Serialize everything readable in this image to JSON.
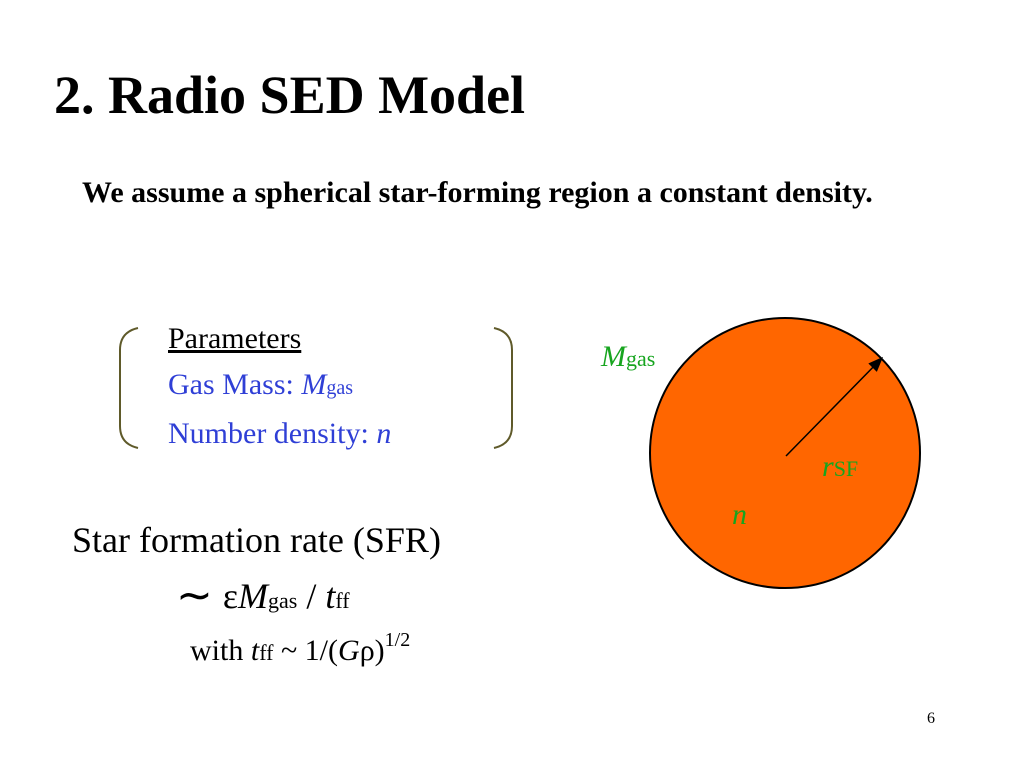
{
  "slide": {
    "title": "2. Radio SED Model",
    "intro": "We assume a spherical star-forming region a constant density.",
    "parameters": {
      "heading": "Parameters",
      "gas_mass_label": "Gas Mass: ",
      "gas_mass_symbol": "M",
      "gas_mass_sub": "gas",
      "number_density_label": "Number density: ",
      "number_density_symbol": "n"
    },
    "sfr": {
      "label": "Star formation rate (SFR)",
      "tilde": "∼",
      "epsilon": "ε",
      "M": "M",
      "M_sub": "gas",
      "slash": " / ",
      "t": "t",
      "t_sub": "ff",
      "with_text": "with ",
      "with_t": "t",
      "with_t_sub": "ff",
      "approx_expr": " ~ 1/(",
      "G": "G",
      "rho": "ρ",
      "close": ")",
      "exponent": "1/2"
    },
    "diagram": {
      "mgas_symbol": "M",
      "mgas_sub": "gas",
      "r_symbol": "r",
      "r_sub": "SF",
      "n_symbol": "n",
      "circle_fill": "#ff6600",
      "label_color": "#17a51f"
    },
    "slide_number": "6"
  }
}
